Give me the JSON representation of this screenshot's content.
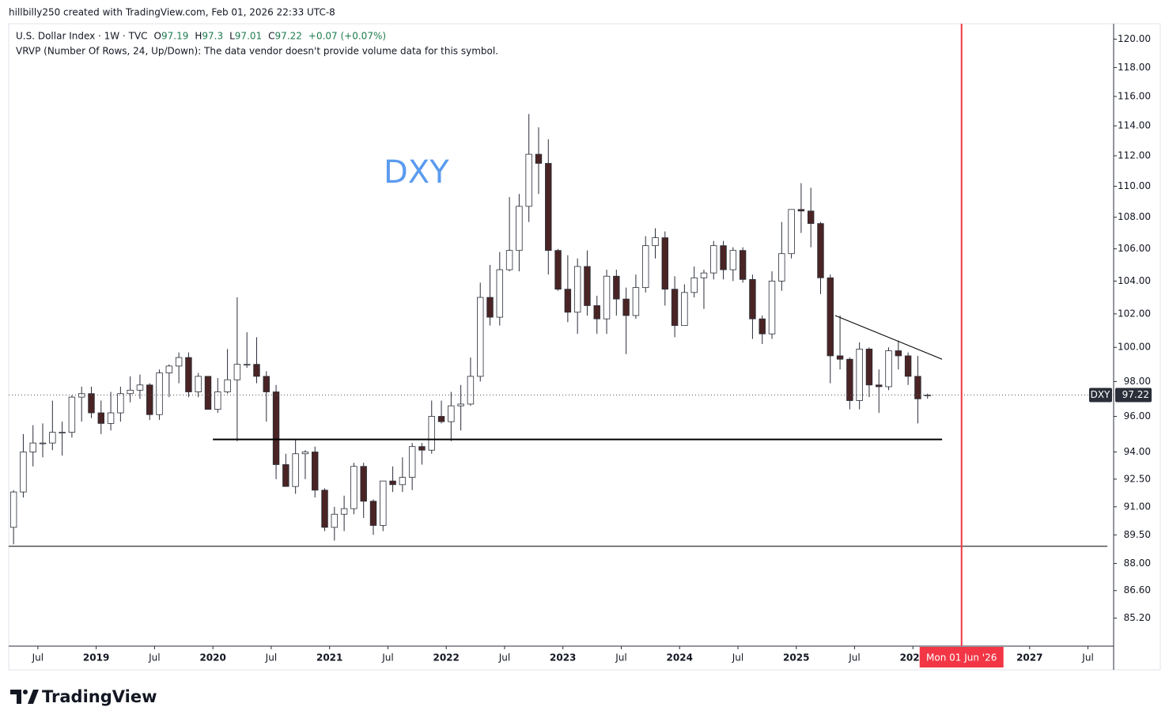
{
  "header": "hillbilly250 created with TradingView.com, Feb 01, 2026 22:33 UTC-8",
  "logo": "TradingView",
  "chart_data": {
    "type": "candlestick",
    "symbol_line": "U.S. Dollar Index · 1W · TVC",
    "legend_labels": [
      "O",
      "H",
      "L",
      "C"
    ],
    "change": "+0.07 (+0.07%)",
    "indicator": "VRVP (Number Of Rows, 24, Up/Down): The data vendor doesn't provide volume data for this symbol.",
    "annotation": "DXY",
    "price_tag": "DXY",
    "marker": {
      "x": "2026-06",
      "label": "Mon 01 Jun '26",
      "color": "#f23645"
    },
    "levels": [
      {
        "y": 94.7,
        "x": [
          "2020-01",
          "2026-04"
        ],
        "width": 2
      },
      {
        "y": 88.9,
        "x": [
          "2018-04",
          "2027-09"
        ],
        "width": 1
      }
    ],
    "trendline": {
      "x": [
        "2025-05",
        "2026-04"
      ],
      "y": [
        101.9,
        99.3
      ]
    },
    "up_color": "#ffffff",
    "down_color": "#4a2424",
    "wick_color": "#2a2e39",
    "log_scale": true,
    "xlim": [
      2018.25,
      2027.72
    ],
    "ylim": [
      83.8,
      121.1
    ],
    "xticks": [
      {
        "value": 2018.5,
        "label": "Jul"
      },
      2019,
      {
        "value": 2019.5,
        "label": "Jul"
      },
      2020,
      {
        "value": 2020.5,
        "label": "Jul"
      },
      2021,
      {
        "value": 2021.5,
        "label": "Jul"
      },
      2022,
      {
        "value": 2022.5,
        "label": "Jul"
      },
      2023,
      {
        "value": 2023.5,
        "label": "Jul"
      },
      2024,
      {
        "value": 2024.5,
        "label": "Jul"
      },
      2025,
      {
        "value": 2025.5,
        "label": "Jul"
      },
      2026,
      2027,
      {
        "value": 2027.5,
        "label": "Jul"
      }
    ],
    "yticks": [
      {
        "value": 120,
        "label": "120.00"
      },
      {
        "value": 118,
        "label": "118.00"
      },
      {
        "value": 116,
        "label": "116.00"
      },
      {
        "value": 114,
        "label": "114.00"
      },
      {
        "value": 112,
        "label": "112.00"
      },
      {
        "value": 110,
        "label": "110.00"
      },
      {
        "value": 108,
        "label": "108.00"
      },
      {
        "value": 106,
        "label": "106.00"
      },
      {
        "value": 104,
        "label": "104.00"
      },
      {
        "value": 102,
        "label": "102.00"
      },
      {
        "value": 100,
        "label": "100.00"
      },
      {
        "value": 98,
        "label": "98.00"
      },
      {
        "value": 96,
        "label": "96.00"
      },
      {
        "value": 94,
        "label": "94.00"
      },
      {
        "value": 92.5,
        "label": "92.50"
      },
      {
        "value": 91,
        "label": "91.00"
      },
      {
        "value": 89.5,
        "label": "89.50"
      },
      {
        "value": 88,
        "label": "88.00"
      },
      {
        "value": 86.6,
        "label": "86.60"
      },
      {
        "value": 85.2,
        "label": "85.20"
      }
    ],
    "x": [
      "2018-04",
      "2018-05",
      "2018-06",
      "2018-07",
      "2018-08",
      "2018-09",
      "2018-10",
      "2018-11",
      "2018-12",
      "2019-01",
      "2019-02",
      "2019-03",
      "2019-04",
      "2019-05",
      "2019-06",
      "2019-07",
      "2019-08",
      "2019-09",
      "2019-10",
      "2019-11",
      "2019-12",
      "2020-01",
      "2020-02",
      "2020-03",
      "2020-04",
      "2020-05",
      "2020-06",
      "2020-07",
      "2020-08",
      "2020-09",
      "2020-10",
      "2020-11",
      "2020-12",
      "2021-01",
      "2021-02",
      "2021-03",
      "2021-04",
      "2021-05",
      "2021-06",
      "2021-07",
      "2021-08",
      "2021-09",
      "2021-10",
      "2021-11",
      "2021-12",
      "2022-01",
      "2022-02",
      "2022-03",
      "2022-04",
      "2022-05",
      "2022-06",
      "2022-07",
      "2022-08",
      "2022-09",
      "2022-10",
      "2022-11",
      "2022-12",
      "2023-01",
      "2023-02",
      "2023-03",
      "2023-04",
      "2023-05",
      "2023-06",
      "2023-07",
      "2023-08",
      "2023-09",
      "2023-10",
      "2023-11",
      "2023-12",
      "2024-01",
      "2024-02",
      "2024-03",
      "2024-04",
      "2024-05",
      "2024-06",
      "2024-07",
      "2024-08",
      "2024-09",
      "2024-10",
      "2024-11",
      "2024-12",
      "2025-01",
      "2025-02",
      "2025-03",
      "2025-04",
      "2025-05",
      "2025-06",
      "2025-07",
      "2025-08",
      "2025-09",
      "2025-10",
      "2025-11",
      "2025-12",
      "2026-01",
      "2026-02"
    ],
    "open": [
      89.9,
      91.8,
      94.0,
      94.5,
      94.5,
      95.1,
      95.1,
      97.1,
      97.3,
      96.2,
      95.6,
      96.2,
      97.3,
      97.5,
      97.8,
      96.1,
      98.5,
      98.9,
      99.4,
      97.4,
      98.3,
      96.4,
      97.4,
      98.1,
      99.0,
      99.0,
      98.3,
      97.4,
      93.3,
      92.1,
      93.9,
      94.0,
      91.9,
      89.9,
      90.6,
      90.9,
      93.2,
      91.3,
      90.0,
      92.4,
      92.2,
      92.6,
      94.3,
      94.1,
      96.0,
      95.7,
      96.6,
      96.7,
      98.3,
      103.0,
      101.8,
      104.7,
      105.9,
      108.7,
      112.1,
      111.5,
      105.9,
      103.5,
      102.1,
      104.9,
      102.5,
      101.7,
      104.3,
      102.9,
      101.9,
      103.6,
      106.2,
      106.7,
      103.5,
      101.3,
      103.3,
      104.2,
      104.5,
      106.2,
      104.7,
      105.9,
      104.1,
      101.7,
      100.8,
      104.0,
      105.7,
      108.5,
      108.4,
      107.6,
      104.2,
      99.5,
      99.3,
      96.9,
      99.9,
      97.8,
      97.7,
      99.8,
      99.5,
      98.3,
      97.19
    ],
    "high": [
      91.9,
      95.0,
      95.5,
      95.6,
      96.9,
      95.7,
      97.2,
      97.7,
      97.7,
      96.9,
      97.4,
      97.7,
      98.3,
      98.4,
      97.9,
      98.7,
      99.0,
      99.7,
      99.7,
      98.5,
      98.3,
      98.2,
      99.9,
      103.0,
      100.9,
      100.6,
      98.6,
      97.8,
      93.9,
      94.7,
      94.1,
      94.3,
      92.0,
      91.0,
      91.6,
      93.4,
      93.4,
      91.4,
      92.4,
      93.2,
      93.7,
      94.5,
      94.5,
      96.9,
      96.9,
      97.4,
      97.8,
      99.4,
      103.9,
      105.0,
      105.8,
      109.3,
      109.5,
      114.8,
      113.9,
      113.1,
      106.0,
      105.6,
      105.4,
      105.9,
      103.1,
      104.7,
      104.7,
      103.6,
      104.4,
      106.8,
      107.3,
      107.1,
      104.3,
      103.8,
      104.9,
      104.7,
      106.5,
      106.5,
      106.1,
      106.1,
      104.4,
      101.9,
      104.6,
      107.7,
      108.5,
      110.2,
      109.9,
      107.7,
      104.4,
      101.9,
      99.4,
      100.3,
      100.0,
      98.7,
      100.0,
      100.4,
      99.7,
      99.5,
      97.3
    ],
    "low": [
      89.0,
      91.5,
      93.2,
      93.7,
      94.1,
      93.8,
      94.8,
      95.7,
      95.9,
      95.0,
      95.2,
      95.7,
      96.8,
      97.0,
      95.8,
      95.8,
      97.1,
      97.9,
      97.1,
      97.1,
      96.4,
      96.2,
      97.3,
      94.6,
      98.8,
      97.9,
      95.7,
      92.5,
      92.1,
      91.7,
      92.5,
      91.5,
      89.7,
      89.2,
      89.7,
      90.6,
      90.4,
      89.5,
      89.7,
      91.8,
      91.8,
      91.9,
      93.3,
      93.9,
      95.6,
      94.6,
      95.2,
      96.6,
      98.0,
      101.3,
      101.3,
      104.6,
      104.6,
      107.7,
      109.5,
      104.4,
      103.4,
      101.5,
      100.8,
      101.9,
      100.8,
      100.8,
      101.9,
      99.6,
      101.7,
      103.3,
      105.4,
      102.5,
      100.6,
      101.3,
      103.0,
      102.3,
      104.1,
      104.1,
      104.0,
      103.9,
      100.5,
      100.2,
      100.5,
      103.4,
      105.4,
      107.0,
      106.1,
      103.2,
      97.9,
      98.7,
      96.4,
      96.4,
      97.1,
      96.2,
      97.5,
      98.7,
      97.8,
      95.6,
      97.01
    ],
    "close": [
      91.8,
      94.0,
      94.5,
      94.5,
      95.1,
      95.1,
      97.1,
      97.3,
      96.2,
      95.6,
      96.2,
      97.3,
      97.5,
      97.8,
      96.1,
      98.5,
      98.9,
      99.4,
      97.4,
      98.3,
      96.4,
      97.4,
      98.1,
      99.0,
      99.0,
      98.3,
      97.4,
      93.3,
      92.1,
      93.9,
      94.0,
      91.9,
      89.9,
      90.6,
      90.9,
      93.2,
      91.3,
      90.0,
      92.4,
      92.2,
      92.6,
      94.3,
      94.1,
      96.0,
      95.7,
      96.6,
      96.7,
      98.3,
      103.0,
      101.8,
      104.7,
      105.9,
      108.7,
      112.1,
      111.5,
      105.9,
      103.5,
      102.1,
      104.9,
      102.5,
      101.7,
      104.3,
      102.9,
      101.9,
      103.6,
      106.2,
      106.7,
      103.5,
      101.3,
      103.3,
      104.2,
      104.5,
      106.2,
      104.7,
      105.9,
      104.1,
      101.7,
      100.8,
      104.0,
      105.7,
      108.5,
      108.4,
      107.6,
      104.2,
      99.5,
      99.3,
      96.9,
      99.9,
      97.8,
      97.7,
      99.8,
      99.5,
      98.3,
      97.0,
      97.22
    ]
  }
}
